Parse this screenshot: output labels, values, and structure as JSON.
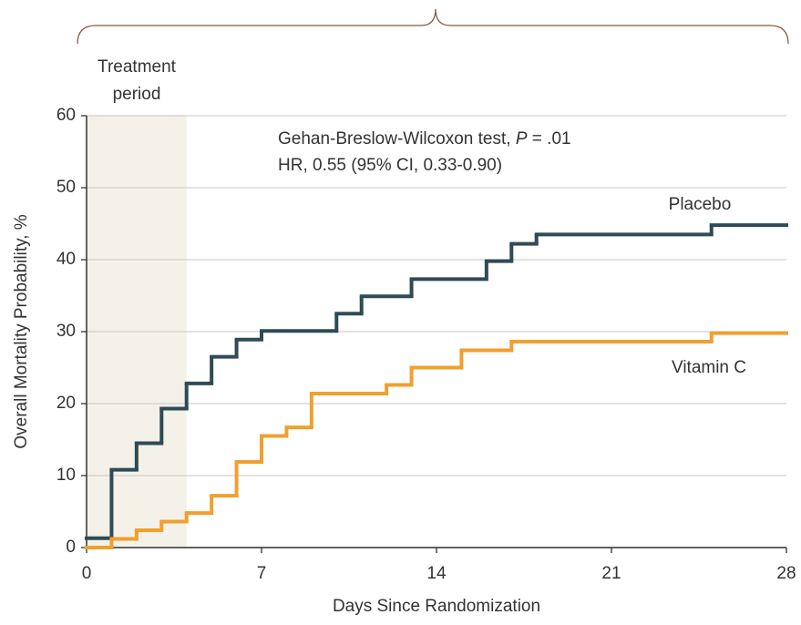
{
  "chart_data": {
    "type": "step",
    "annotations": {
      "treatment": [
        "Treatment",
        "period"
      ],
      "test": [
        "Gehan-Breslow-Wilcoxon test, ",
        "P",
        " = .01"
      ],
      "hr": "HR, 0.55 (95% CI, 0.33-0.90)"
    },
    "shade_x": [
      0,
      4
    ],
    "x_label": "Days Since Randomization",
    "y_label": "Overall Mortality Probability, %",
    "xlim": [
      0,
      28
    ],
    "xticks": [
      0,
      7,
      14,
      21,
      28
    ],
    "ylim": [
      0,
      60
    ],
    "yticks": [
      0,
      10,
      20,
      30,
      40,
      50,
      60
    ],
    "grid": true,
    "series": [
      {
        "name": "Placebo",
        "color": "#2f4b55",
        "x": [
          0,
          1,
          2,
          3,
          4,
          5,
          6,
          7,
          10,
          11,
          13,
          16,
          17,
          18,
          25
        ],
        "values": [
          1.3,
          10.8,
          14.5,
          19.3,
          22.8,
          26.5,
          28.9,
          30.1,
          32.5,
          34.9,
          37.3,
          39.8,
          42.2,
          43.5,
          44.8
        ]
      },
      {
        "name": "Vitamin C",
        "color": "#f0a030",
        "x": [
          0,
          1,
          2,
          3,
          4,
          5,
          6,
          7,
          8,
          9,
          12,
          13,
          15,
          17,
          25
        ],
        "values": [
          0,
          1.2,
          2.4,
          3.6,
          4.8,
          7.2,
          11.9,
          15.5,
          16.7,
          21.4,
          22.6,
          25.0,
          27.4,
          28.6,
          29.8
        ]
      }
    ]
  }
}
